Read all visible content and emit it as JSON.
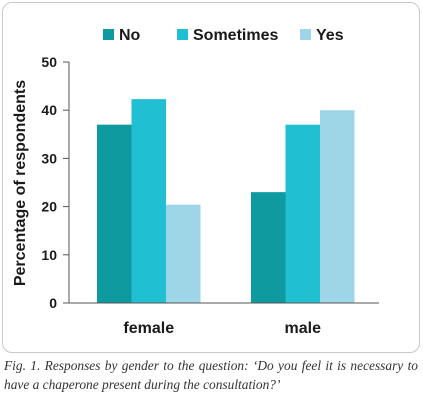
{
  "chart_data": {
    "type": "bar",
    "categories": [
      "female",
      "male"
    ],
    "series": [
      {
        "name": "No",
        "values": [
          37,
          23
        ],
        "color": "#0f9aa0"
      },
      {
        "name": "Sometimes",
        "values": [
          42.3,
          37
        ],
        "color": "#21bfd2"
      },
      {
        "name": "Yes",
        "values": [
          20.4,
          40
        ],
        "color": "#9fd6e7"
      }
    ],
    "ylabel": "Percentage  of respondents",
    "xlabel": "",
    "ylim": [
      0,
      50
    ],
    "yticks": [
      0,
      10,
      20,
      30,
      40,
      50
    ],
    "grid": false,
    "legend": "top"
  },
  "caption": "Fig. 1. Responses by gender to the question: ‘Do you feel it is necessary to have a chaperone present during the consultation?’"
}
